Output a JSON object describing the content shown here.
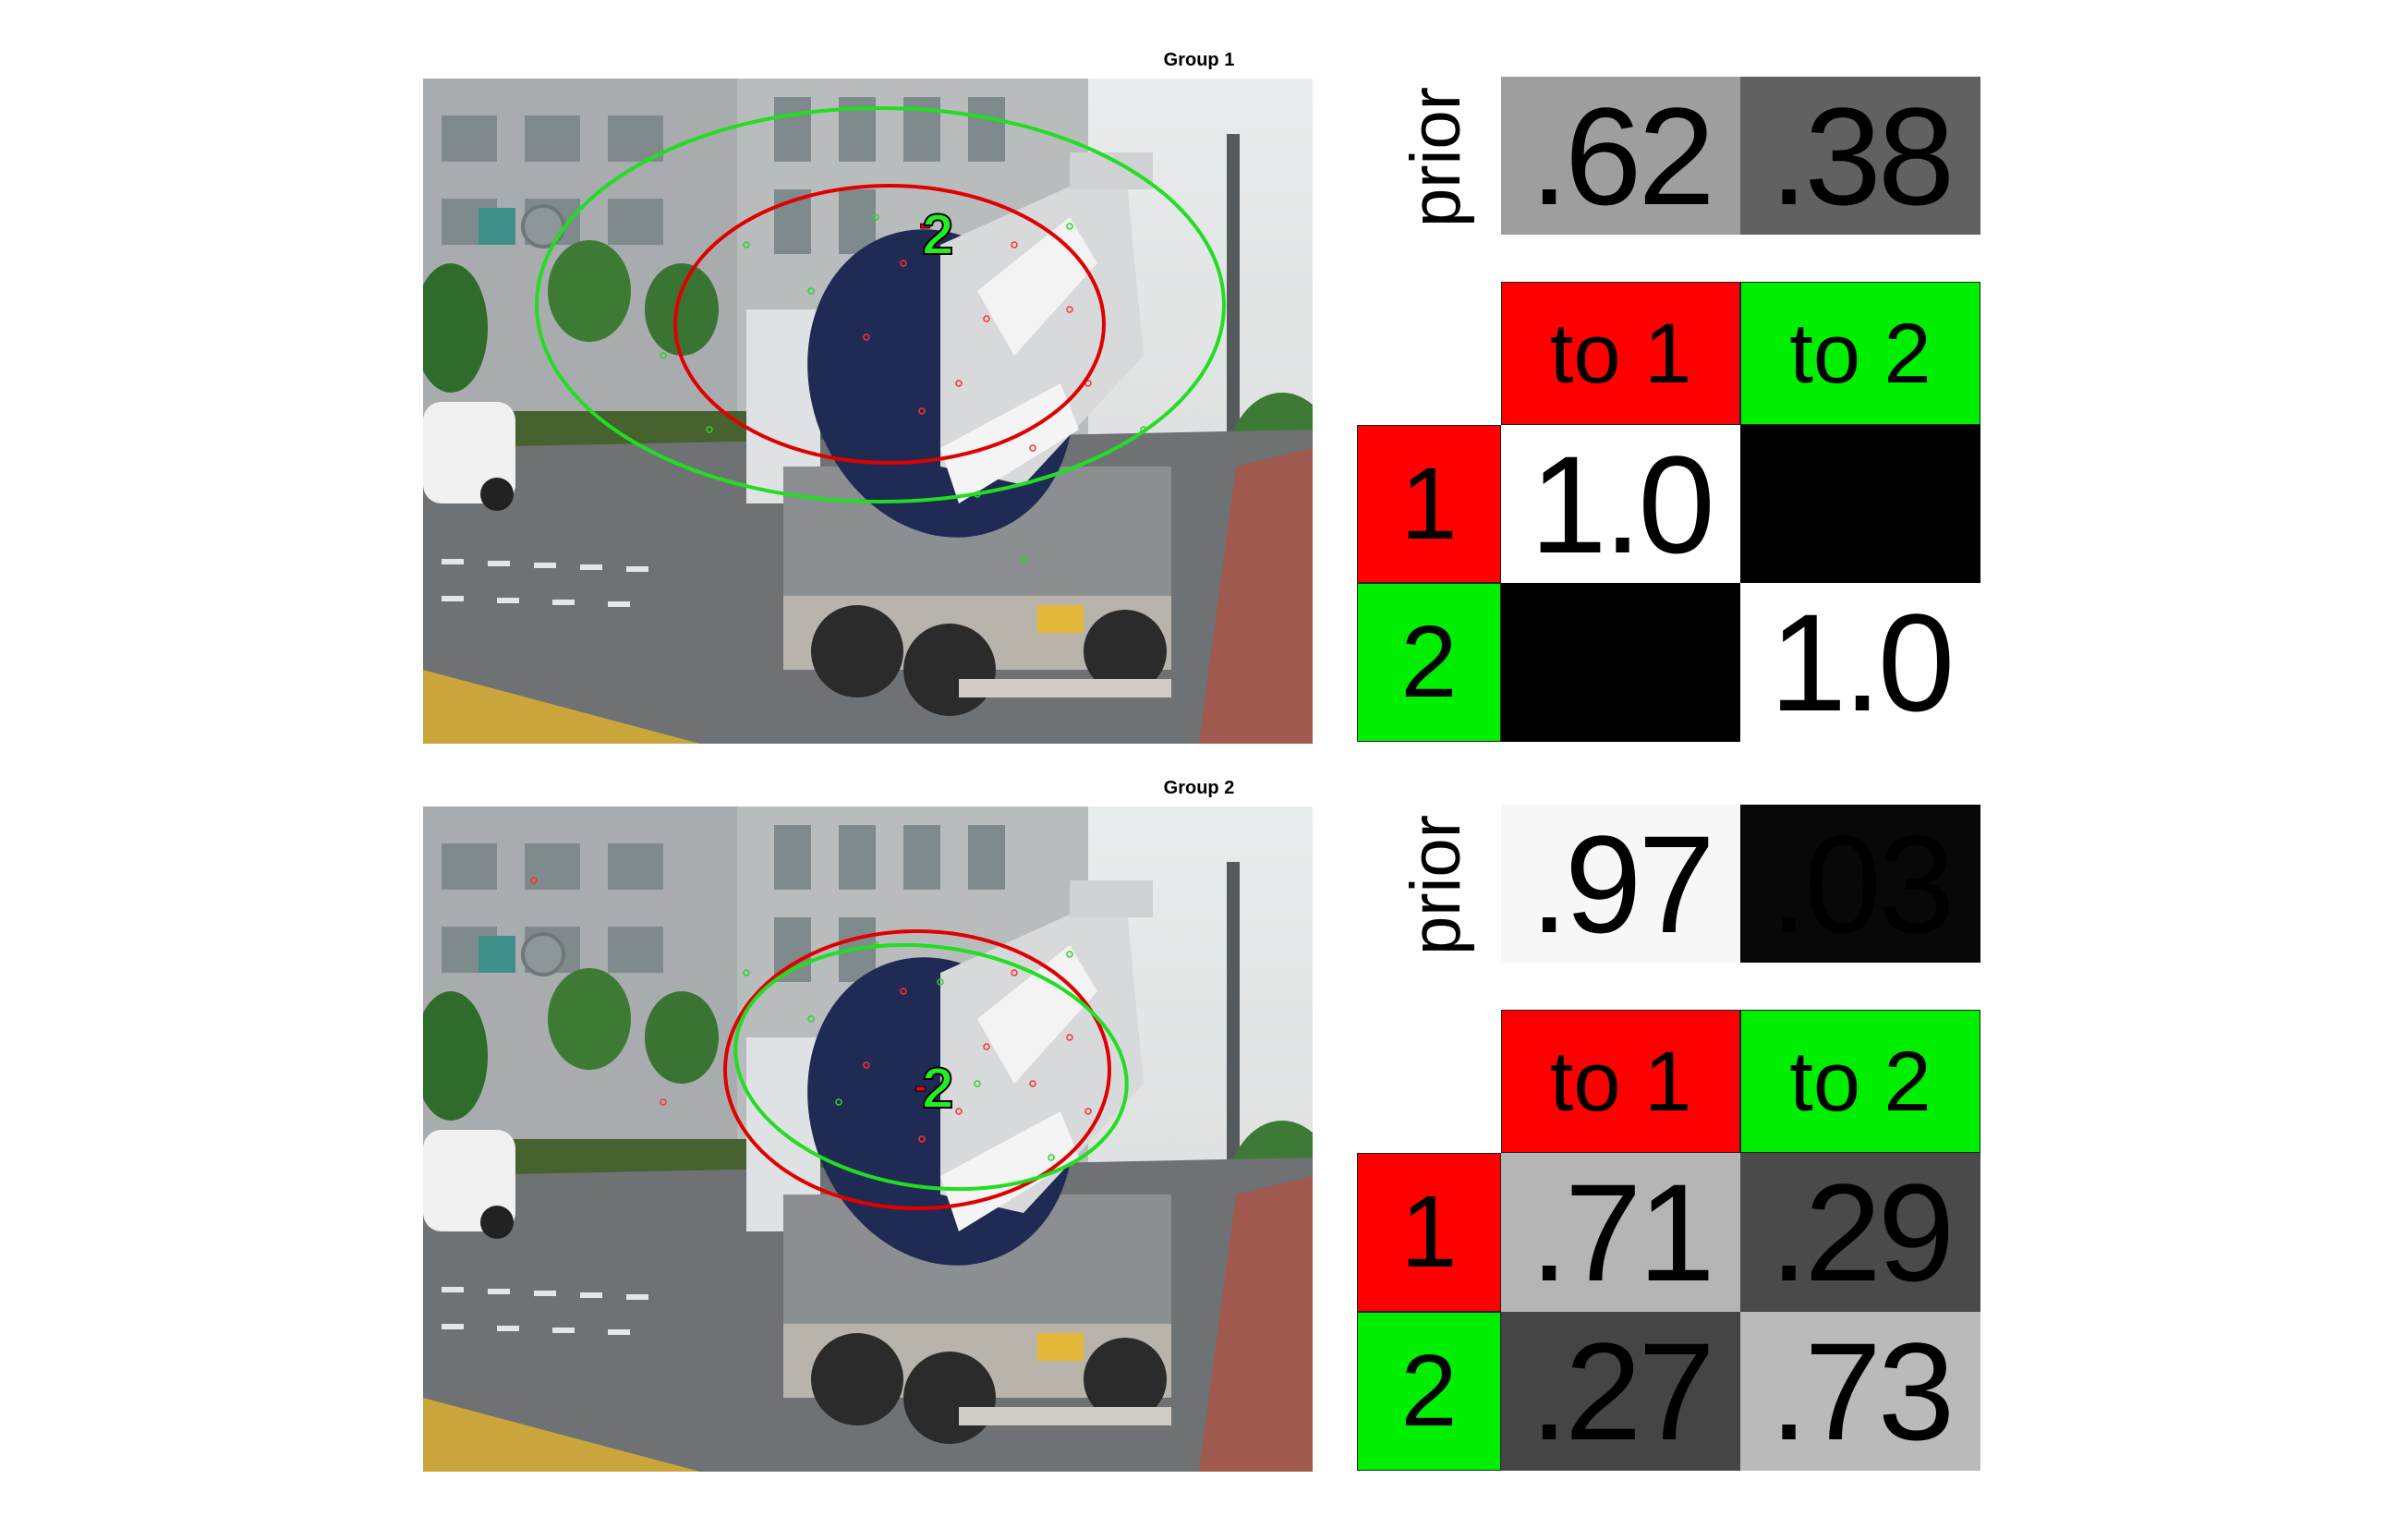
{
  "colors": {
    "group1": "#ff0000",
    "group2": "#00e600"
  },
  "panels": [
    {
      "title": "Group 1",
      "marker_label": "2",
      "prior_label": "prior",
      "prior": [
        {
          "text": ".62",
          "value": 0.62
        },
        {
          "text": ".38",
          "value": 0.38
        }
      ],
      "headers": [
        "to 1",
        "to 2"
      ],
      "row_labels": [
        "1",
        "2"
      ],
      "matrix": [
        [
          {
            "text": "1.0",
            "value": 1.0
          },
          {
            "text": "",
            "value": 0.0
          }
        ],
        [
          {
            "text": "",
            "value": 0.0
          },
          {
            "text": "1.0",
            "value": 1.0
          }
        ]
      ]
    },
    {
      "title": "Group 2",
      "marker_label": "2",
      "prior_label": "prior",
      "prior": [
        {
          "text": ".97",
          "value": 0.97
        },
        {
          "text": ".03",
          "value": 0.03
        }
      ],
      "headers": [
        "to 1",
        "to 2"
      ],
      "row_labels": [
        "1",
        "2"
      ],
      "matrix": [
        [
          {
            "text": ".71",
            "value": 0.71
          },
          {
            "text": ".29",
            "value": 0.29
          }
        ],
        [
          {
            "text": ".27",
            "value": 0.27
          },
          {
            "text": ".73",
            "value": 0.73
          }
        ]
      ]
    }
  ]
}
